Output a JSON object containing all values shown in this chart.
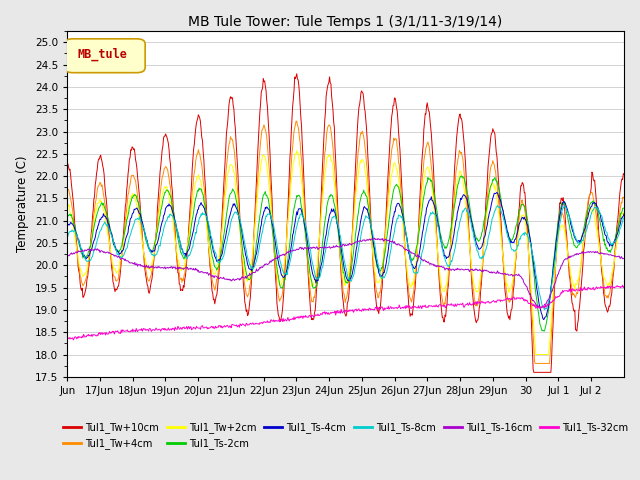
{
  "title": "MB Tule Tower: Tule Temps 1 (3/1/11-3/19/14)",
  "ylabel": "Temperature (C)",
  "ylim": [
    17.5,
    25.25
  ],
  "yticks": [
    17.5,
    18.0,
    18.5,
    19.0,
    19.5,
    20.0,
    20.5,
    21.0,
    21.5,
    22.0,
    22.5,
    23.0,
    23.5,
    24.0,
    24.5,
    25.0
  ],
  "xlabel_dates": [
    "Jun",
    "17Jun",
    "18Jun",
    "19Jun",
    "20Jun",
    "21Jun",
    "22Jun",
    "23Jun",
    "24Jun",
    "25Jun",
    "26Jun",
    "27Jun",
    "28Jun",
    "29Jun",
    "30",
    "Jul 1",
    "Jul 2"
  ],
  "legend_label": "MB_tule",
  "series_colors": {
    "Tul1_Tw+10cm": "#dd0000",
    "Tul1_Tw+4cm": "#ff8c00",
    "Tul1_Tw+2cm": "#ffff00",
    "Tul1_Ts-2cm": "#00cc00",
    "Tul1_Ts-4cm": "#0000cc",
    "Tul1_Ts-8cm": "#00cccc",
    "Tul1_Ts-16cm": "#aa00cc",
    "Tul1_Ts-32cm": "#ff00cc"
  },
  "bg_color": "#e8e8e8",
  "plot_bg": "#ffffff",
  "grid_color": "#cccccc"
}
